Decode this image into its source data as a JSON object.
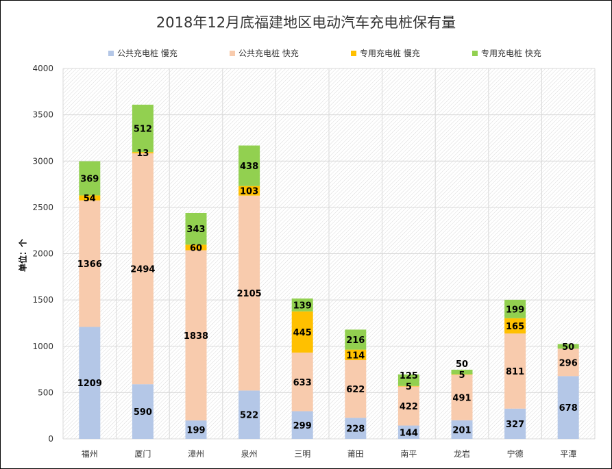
{
  "chart_data": {
    "type": "bar",
    "stacked": true,
    "title": "2018年12月底福建地区电动汽车充电桩保有量",
    "ylabel": "单位：个",
    "xlabel": "",
    "ylim": [
      0,
      4000
    ],
    "yticks": [
      0,
      500,
      1000,
      1500,
      2000,
      2500,
      3000,
      3500,
      4000
    ],
    "grid": true,
    "legend_position": "top",
    "categories": [
      "福州",
      "厦门",
      "漳州",
      "泉州",
      "三明",
      "莆田",
      "南平",
      "龙岩",
      "宁德",
      "平潭"
    ],
    "series": [
      {
        "name": "公共充电桩 慢充",
        "color": "#B4C7E7",
        "values": [
          1209,
          590,
          199,
          522,
          299,
          228,
          144,
          201,
          327,
          678
        ]
      },
      {
        "name": "公共充电桩 快充",
        "color": "#F8CBAD",
        "values": [
          1366,
          2494,
          1838,
          2105,
          633,
          622,
          422,
          491,
          811,
          296
        ]
      },
      {
        "name": "专用充电桩 慢充",
        "color": "#FFC000",
        "values": [
          54,
          13,
          60,
          103,
          445,
          114,
          5,
          5,
          165,
          0
        ]
      },
      {
        "name": "专用充电桩 快充",
        "color": "#92D050",
        "values": [
          369,
          512,
          343,
          438,
          139,
          216,
          125,
          50,
          199,
          50
        ]
      }
    ]
  }
}
